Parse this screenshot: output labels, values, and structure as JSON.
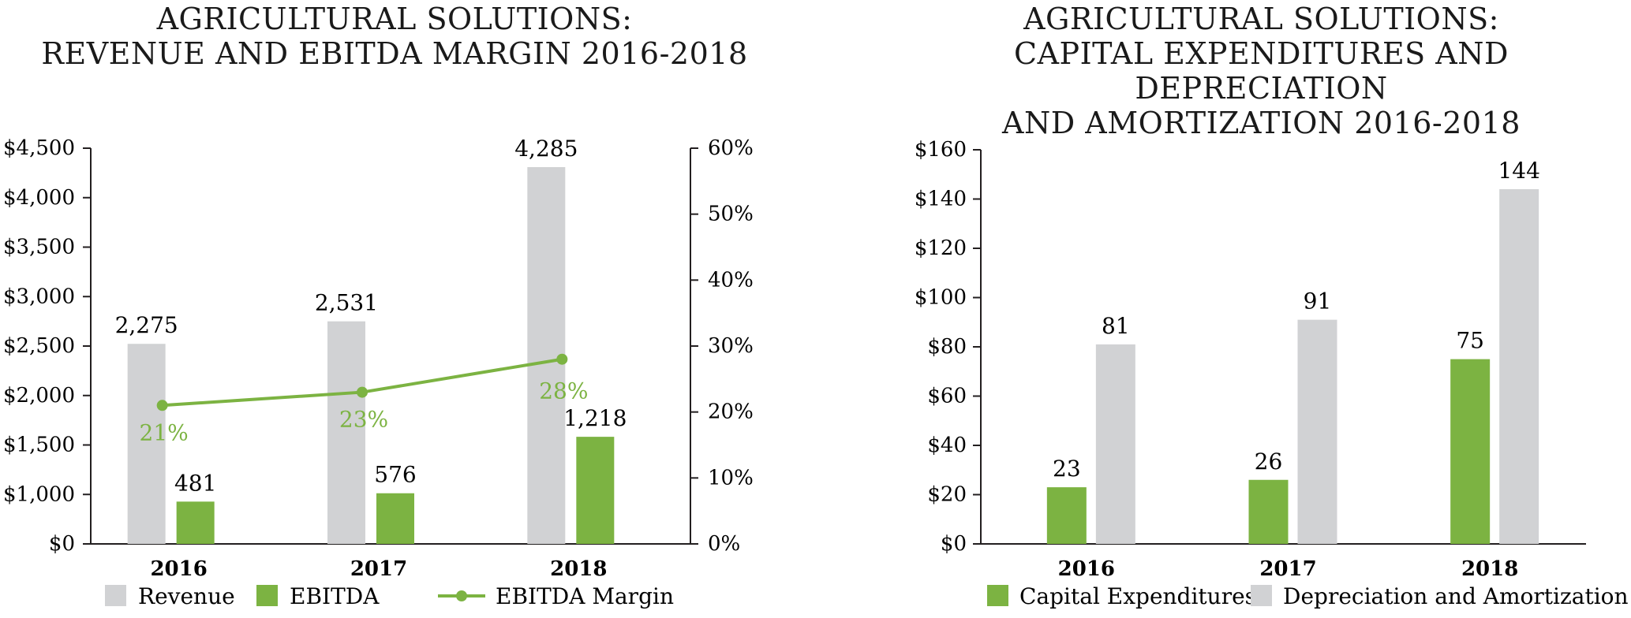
{
  "colors": {
    "gray": "#d1d2d4",
    "green": "#7cb342",
    "axis": "#231f20"
  },
  "chart_data": [
    {
      "type": "bar",
      "title_lines": [
        "AGRICULTURAL SOLUTIONS:",
        "REVENUE AND EBITDA MARGIN 2016-2018"
      ],
      "categories": [
        "2016",
        "2017",
        "2018"
      ],
      "ylim": [
        0,
        4500
      ],
      "y2lim": [
        0,
        60
      ],
      "yticks": [
        "$0",
        "$1,000",
        "$1,500",
        "$2,000",
        "$2,500",
        "$3,000",
        "$3,500",
        "$4,000",
        "$4,500"
      ],
      "y2ticks": [
        "0%",
        "10%",
        "20%",
        "30%",
        "40%",
        "50%",
        "60%"
      ],
      "series": [
        {
          "name": "Revenue",
          "values": [
            2275,
            2531,
            4285
          ],
          "labels": [
            "2,275",
            "2,531",
            "4,285"
          ]
        },
        {
          "name": "EBITDA",
          "values": [
            481,
            576,
            1218
          ],
          "labels": [
            "481",
            "576",
            "1,218"
          ]
        },
        {
          "name": "EBITDA Margin",
          "type": "line",
          "axis": "secondary",
          "values": [
            21,
            23,
            28
          ],
          "labels": [
            "21%",
            "23%",
            "28%"
          ]
        }
      ],
      "legend": "bottom"
    },
    {
      "type": "bar",
      "title_lines": [
        "AGRICULTURAL SOLUTIONS:",
        "CAPITAL EXPENDITURES AND DEPRECIATION",
        "AND AMORTIZATION 2016-2018"
      ],
      "categories": [
        "2016",
        "2017",
        "2018"
      ],
      "ylim": [
        0,
        160
      ],
      "yticks": [
        "$0",
        "$20",
        "$40",
        "$60",
        "$80",
        "$100",
        "$120",
        "$140",
        "$160"
      ],
      "series": [
        {
          "name": "Capital Expenditures",
          "values": [
            23,
            26,
            75
          ],
          "labels": [
            "23",
            "26",
            "75"
          ]
        },
        {
          "name": "Depreciation and Amortization",
          "values": [
            81,
            91,
            144
          ],
          "labels": [
            "81",
            "91",
            "144"
          ]
        }
      ],
      "legend": "bottom"
    }
  ]
}
